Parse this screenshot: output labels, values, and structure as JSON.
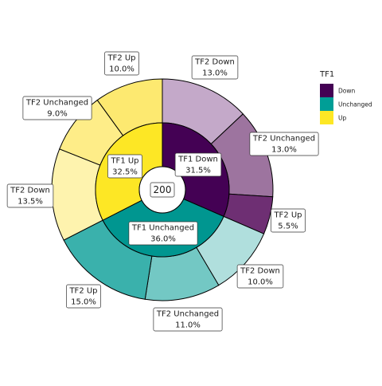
{
  "chart_data": {
    "type": "pie",
    "subtype": "sunburst",
    "center_label": "200",
    "inner_ring": [
      {
        "label": "TF1 Down",
        "percent": 31.5,
        "percent_label": "31.5%",
        "group": "Down"
      },
      {
        "label": "TF1 Unchanged",
        "percent": 36.0,
        "percent_label": "36.0%",
        "group": "Unchanged"
      },
      {
        "label": "TF1 Up",
        "percent": 32.5,
        "percent_label": "32.5%",
        "group": "Up"
      }
    ],
    "outer_ring": [
      {
        "label": "TF2 Down",
        "percent": 13.0,
        "percent_label": "13.0%",
        "parent": "Down"
      },
      {
        "label": "TF2 Unchanged",
        "percent": 13.0,
        "percent_label": "13.0%",
        "parent": "Down"
      },
      {
        "label": "TF2 Up",
        "percent": 5.5,
        "percent_label": "5.5%",
        "parent": "Down"
      },
      {
        "label": "TF2 Down",
        "percent": 10.0,
        "percent_label": "10.0%",
        "parent": "Unchanged"
      },
      {
        "label": "TF2 Unchanged",
        "percent": 11.0,
        "percent_label": "11.0%",
        "parent": "Unchanged"
      },
      {
        "label": "TF2 Up",
        "percent": 15.0,
        "percent_label": "15.0%",
        "parent": "Unchanged"
      },
      {
        "label": "TF2 Down",
        "percent": 13.5,
        "percent_label": "13.5%",
        "parent": "Up"
      },
      {
        "label": "TF2 Unchanged",
        "percent": 9.0,
        "percent_label": "9.0%",
        "parent": "Up"
      },
      {
        "label": "TF2 Up",
        "percent": 10.0,
        "percent_label": "10.0%",
        "parent": "Up"
      }
    ],
    "legend": {
      "title": "TF1",
      "placement": "right",
      "entries": [
        {
          "label": "Down",
          "color": "#440154"
        },
        {
          "label": "Unchanged",
          "color": "#009E96"
        },
        {
          "label": "Up",
          "color": "#FDE725"
        }
      ]
    },
    "colors": {
      "inner": {
        "Down": "#440154",
        "Unchanged": "#009690",
        "Up": "#FDE725"
      },
      "outer": [
        "#C4A9C9",
        "#9D749F",
        "#6E2F73",
        "#B0DFDD",
        "#73C8C4",
        "#3AB1AC",
        "#FEF3AE",
        "#FEED88",
        "#FDE970"
      ]
    }
  }
}
